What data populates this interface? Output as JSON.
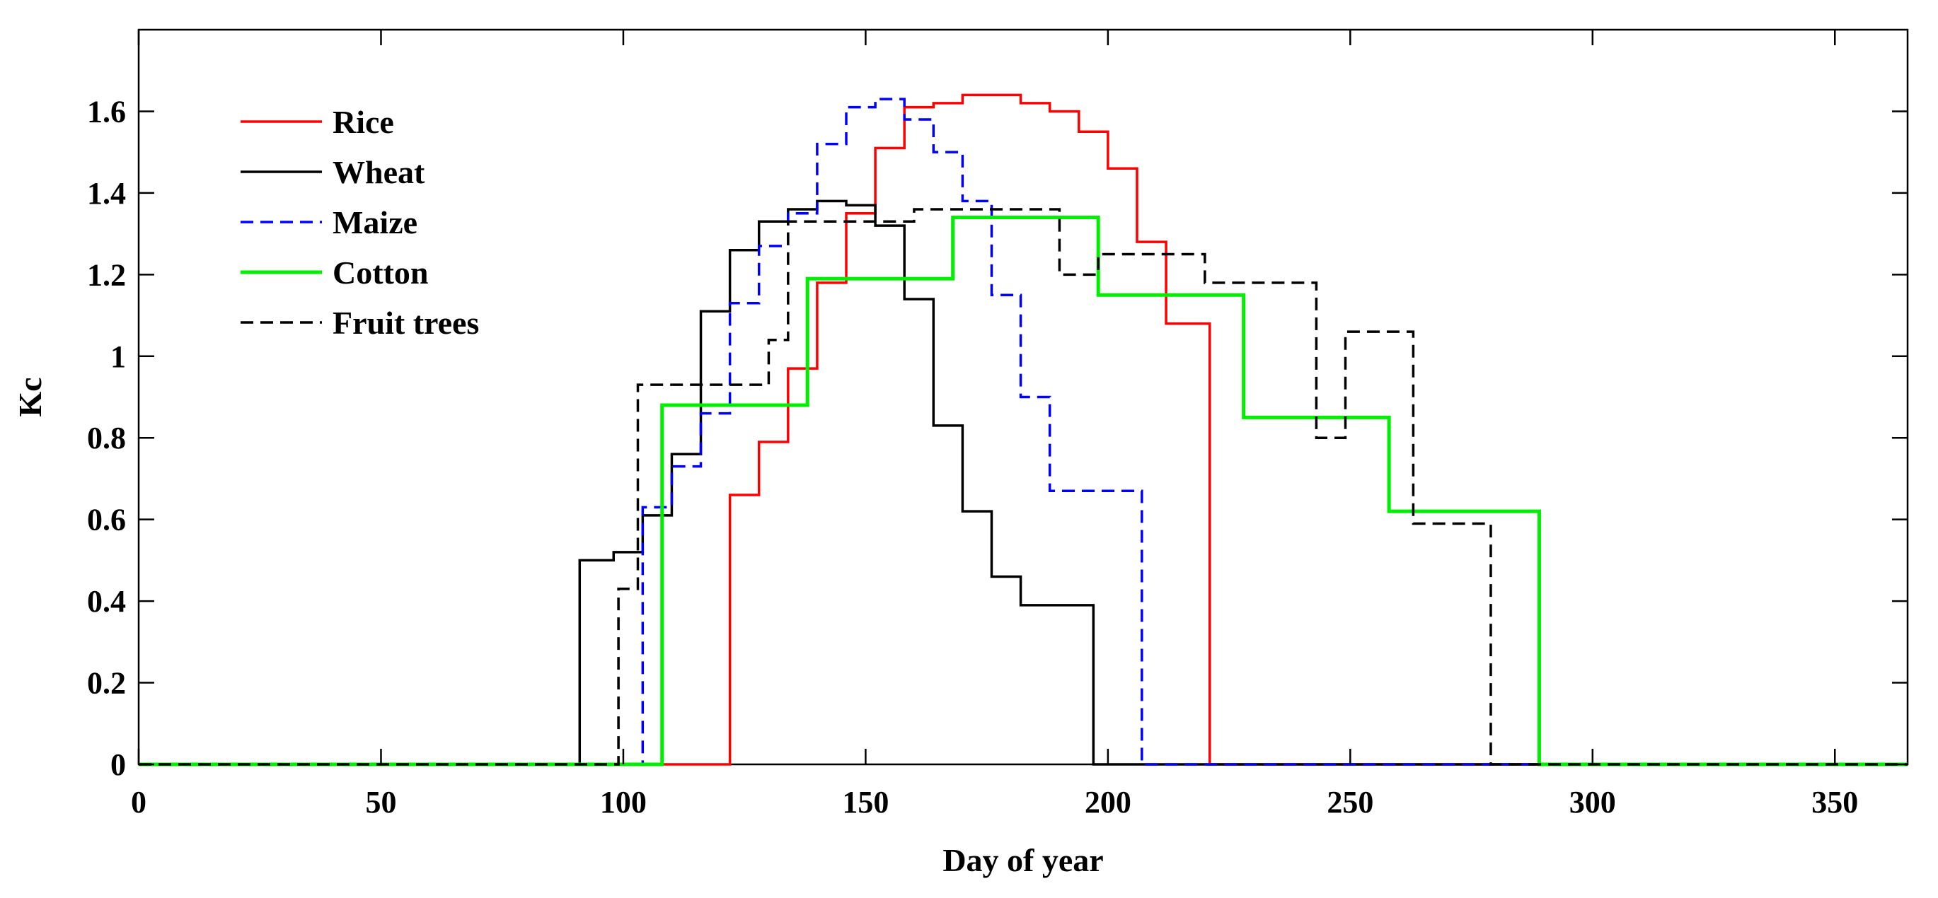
{
  "chart_data": {
    "type": "line",
    "title": "",
    "xlabel": "Day of year",
    "ylabel": "Kc",
    "xlim": [
      0,
      365
    ],
    "ylim": [
      0,
      1.8
    ],
    "xticks": [
      0,
      50,
      100,
      150,
      200,
      250,
      300,
      350
    ],
    "xtick_labels": [
      "0",
      "50",
      "100",
      "150",
      "200",
      "250",
      "300",
      "350"
    ],
    "yticks": [
      0,
      0.2,
      0.4,
      0.6,
      0.8,
      1,
      1.2,
      1.4,
      1.6
    ],
    "ytick_labels": [
      "0",
      "0.2",
      "0.4",
      "0.6",
      "0.8",
      "1",
      "1.2",
      "1.4",
      "1.6"
    ],
    "grid": false,
    "legend_position": "top-left",
    "series": [
      {
        "name": "Rice",
        "color": "#ff0000",
        "dash": "solid",
        "steps": [
          [
            0,
            0
          ],
          [
            122,
            0.66
          ],
          [
            128,
            0.79
          ],
          [
            134,
            0.97
          ],
          [
            140,
            1.18
          ],
          [
            146,
            1.35
          ],
          [
            152,
            1.51
          ],
          [
            158,
            1.61
          ],
          [
            164,
            1.62
          ],
          [
            170,
            1.64
          ],
          [
            176,
            1.64
          ],
          [
            182,
            1.62
          ],
          [
            188,
            1.6
          ],
          [
            194,
            1.55
          ],
          [
            200,
            1.46
          ],
          [
            206,
            1.28
          ],
          [
            212,
            1.08
          ],
          [
            221,
            0
          ]
        ]
      },
      {
        "name": "Wheat",
        "color": "#000000",
        "dash": "solid",
        "steps": [
          [
            0,
            0
          ],
          [
            91,
            0.5
          ],
          [
            98,
            0.52
          ],
          [
            104,
            0.61
          ],
          [
            110,
            0.76
          ],
          [
            116,
            1.11
          ],
          [
            122,
            1.26
          ],
          [
            128,
            1.33
          ],
          [
            134,
            1.36
          ],
          [
            140,
            1.38
          ],
          [
            146,
            1.37
          ],
          [
            152,
            1.32
          ],
          [
            158,
            1.14
          ],
          [
            164,
            0.83
          ],
          [
            170,
            0.62
          ],
          [
            176,
            0.46
          ],
          [
            182,
            0.39
          ],
          [
            197,
            0
          ]
        ]
      },
      {
        "name": "Maize",
        "color": "#0000ff",
        "dash": "dashed",
        "steps": [
          [
            0,
            0
          ],
          [
            104,
            0.63
          ],
          [
            110,
            0.73
          ],
          [
            116,
            0.86
          ],
          [
            122,
            1.13
          ],
          [
            128,
            1.27
          ],
          [
            134,
            1.35
          ],
          [
            140,
            1.52
          ],
          [
            146,
            1.61
          ],
          [
            152,
            1.63
          ],
          [
            158,
            1.58
          ],
          [
            164,
            1.5
          ],
          [
            170,
            1.38
          ],
          [
            176,
            1.15
          ],
          [
            182,
            0.9
          ],
          [
            188,
            0.67
          ],
          [
            207,
            0
          ]
        ]
      },
      {
        "name": "Cotton",
        "color": "#00ee00",
        "dash": "solid",
        "steps": [
          [
            0,
            0
          ],
          [
            108,
            0.88
          ],
          [
            138,
            1.19
          ],
          [
            168,
            1.34
          ],
          [
            198,
            1.15
          ],
          [
            228,
            0.85
          ],
          [
            258,
            0.62
          ],
          [
            289,
            0
          ]
        ]
      },
      {
        "name": "Fruit trees",
        "color": "#000000",
        "dash": "dashed",
        "steps": [
          [
            0,
            0
          ],
          [
            99,
            0.43
          ],
          [
            103,
            0.93
          ],
          [
            130,
            1.04
          ],
          [
            134,
            1.33
          ],
          [
            160,
            1.36
          ],
          [
            190,
            1.2
          ],
          [
            198,
            1.25
          ],
          [
            220,
            1.18
          ],
          [
            243,
            0.8
          ],
          [
            249,
            1.06
          ],
          [
            263,
            0.59
          ],
          [
            279,
            0
          ]
        ]
      }
    ]
  }
}
